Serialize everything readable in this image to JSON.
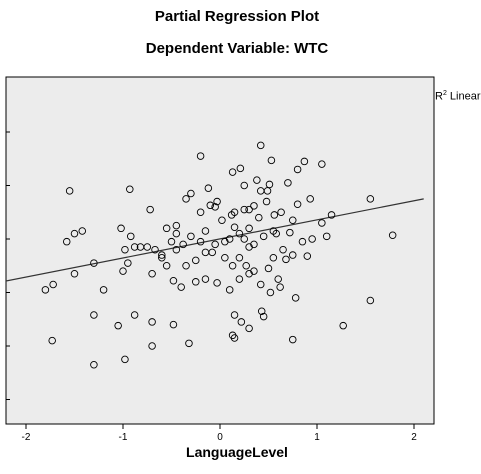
{
  "title": "Partial Regression Plot",
  "subtitle": "Dependent Variable: WTC",
  "legend_prefix": "R",
  "legend_sup": "2",
  "legend_suffix": " Linear",
  "x_axis_label": "LanguageLevel",
  "chart_data": {
    "type": "scatter",
    "title": "Partial Regression Plot",
    "subtitle": "Dependent Variable: WTC",
    "xlabel": "LanguageLevel",
    "ylabel": "",
    "xlim": [
      -2.1,
      2.1
    ],
    "ylim": [
      -3.05,
      2.1
    ],
    "x_ticks": [
      -2,
      -1,
      0,
      1,
      2
    ],
    "x_tick_labels": [
      "-2",
      "-1",
      "0",
      "1",
      "2"
    ],
    "y_ticks": [
      -3,
      -2,
      -1,
      0,
      1,
      2
    ],
    "legend": "R2 Linear",
    "legend_position": "top-right",
    "grid": false,
    "point_color": "#000000",
    "background_color": "#ececec",
    "fit_line": {
      "x0": -2.25,
      "y0": -0.8,
      "x1": 2.1,
      "y1": 0.75
    },
    "points": [
      [
        0.42,
        1.75
      ],
      [
        0.13,
        1.25
      ],
      [
        0.21,
        1.32
      ],
      [
        0.87,
        1.45
      ],
      [
        0.8,
        1.3
      ],
      [
        1.05,
        1.4
      ],
      [
        -0.2,
        1.55
      ],
      [
        0.53,
        1.47
      ],
      [
        0.25,
        1.0
      ],
      [
        -0.12,
        0.95
      ],
      [
        0.38,
        1.1
      ],
      [
        0.42,
        0.9
      ],
      [
        0.35,
        0.62
      ],
      [
        0.51,
        1.02
      ],
      [
        0.49,
        0.9
      ],
      [
        0.7,
        1.05
      ],
      [
        0.63,
        0.5
      ],
      [
        0.48,
        0.7
      ],
      [
        0.56,
        0.45
      ],
      [
        0.8,
        0.65
      ],
      [
        0.93,
        0.75
      ],
      [
        -0.93,
        0.93
      ],
      [
        -0.72,
        0.55
      ],
      [
        -0.1,
        0.63
      ],
      [
        -0.05,
        0.6
      ],
      [
        -0.2,
        0.5
      ],
      [
        -0.03,
        0.7
      ],
      [
        0.12,
        0.45
      ],
      [
        0.15,
        0.5
      ],
      [
        0.25,
        0.55
      ],
      [
        0.3,
        0.55
      ],
      [
        0.02,
        0.35
      ],
      [
        -0.3,
        0.85
      ],
      [
        -0.35,
        0.75
      ],
      [
        -0.45,
        0.25
      ],
      [
        -0.55,
        0.2
      ],
      [
        0.15,
        0.22
      ],
      [
        0.3,
        0.2
      ],
      [
        0.4,
        0.4
      ],
      [
        0.55,
        0.15
      ],
      [
        0.75,
        0.35
      ],
      [
        1.05,
        0.3
      ],
      [
        1.15,
        0.45
      ],
      [
        1.55,
        0.75
      ],
      [
        -1.02,
        0.2
      ],
      [
        -0.75,
        -0.15
      ],
      [
        -0.6,
        -0.3
      ],
      [
        -0.45,
        0.1
      ],
      [
        -0.38,
        -0.1
      ],
      [
        -0.3,
        0.05
      ],
      [
        -0.2,
        -0.05
      ],
      [
        -0.15,
        0.15
      ],
      [
        -0.05,
        -0.1
      ],
      [
        0.05,
        -0.05
      ],
      [
        0.1,
        0.0
      ],
      [
        0.2,
        0.1
      ],
      [
        0.25,
        0.0
      ],
      [
        0.3,
        -0.15
      ],
      [
        0.35,
        -0.1
      ],
      [
        0.45,
        0.05
      ],
      [
        0.58,
        0.1
      ],
      [
        0.65,
        -0.2
      ],
      [
        0.72,
        0.12
      ],
      [
        0.85,
        -0.05
      ],
      [
        0.95,
        0.0
      ],
      [
        1.1,
        0.05
      ],
      [
        -1.55,
        0.9
      ],
      [
        -1.5,
        0.1
      ],
      [
        -1.42,
        0.15
      ],
      [
        -1.58,
        -0.05
      ],
      [
        -1.3,
        -0.45
      ],
      [
        -0.98,
        -0.2
      ],
      [
        -0.95,
        -0.45
      ],
      [
        -0.88,
        -0.15
      ],
      [
        -0.82,
        -0.15
      ],
      [
        -0.92,
        0.05
      ],
      [
        -0.67,
        -0.2
      ],
      [
        -0.6,
        -0.35
      ],
      [
        -0.55,
        -0.5
      ],
      [
        -0.5,
        -0.05
      ],
      [
        -0.45,
        -0.2
      ],
      [
        -0.35,
        -0.5
      ],
      [
        -0.25,
        -0.4
      ],
      [
        -0.15,
        -0.25
      ],
      [
        -0.08,
        -0.25
      ],
      [
        0.05,
        -0.35
      ],
      [
        0.13,
        -0.5
      ],
      [
        0.2,
        -0.35
      ],
      [
        0.27,
        -0.5
      ],
      [
        0.35,
        -0.6
      ],
      [
        0.5,
        -0.55
      ],
      [
        0.55,
        -0.35
      ],
      [
        0.68,
        -0.38
      ],
      [
        0.75,
        -0.3
      ],
      [
        0.9,
        -0.32
      ],
      [
        0.6,
        -0.75
      ],
      [
        -1.5,
        -0.65
      ],
      [
        -1.72,
        -0.85
      ],
      [
        -1.8,
        -0.95
      ],
      [
        -1.2,
        -0.95
      ],
      [
        -1.0,
        -0.6
      ],
      [
        -0.7,
        -0.65
      ],
      [
        -0.48,
        -0.78
      ],
      [
        -0.4,
        -0.9
      ],
      [
        -0.25,
        -0.8
      ],
      [
        -0.15,
        -0.75
      ],
      [
        -0.03,
        -0.82
      ],
      [
        0.1,
        -0.95
      ],
      [
        0.2,
        -0.75
      ],
      [
        0.3,
        -0.65
      ],
      [
        0.42,
        -0.85
      ],
      [
        0.52,
        -1.0
      ],
      [
        0.62,
        -0.9
      ],
      [
        0.78,
        -1.1
      ],
      [
        -1.3,
        -1.42
      ],
      [
        -1.05,
        -1.62
      ],
      [
        -0.88,
        -1.42
      ],
      [
        -0.7,
        -1.55
      ],
      [
        -0.48,
        -1.6
      ],
      [
        0.15,
        -1.42
      ],
      [
        0.22,
        -1.55
      ],
      [
        0.3,
        -1.67
      ],
      [
        0.43,
        -1.35
      ],
      [
        0.45,
        -1.45
      ],
      [
        0.75,
        -1.88
      ],
      [
        1.27,
        -1.62
      ],
      [
        1.55,
        -1.15
      ],
      [
        1.78,
        0.07
      ],
      [
        -1.73,
        -1.9
      ],
      [
        -1.3,
        -2.35
      ],
      [
        -0.98,
        -2.25
      ],
      [
        -0.7,
        -2.0
      ],
      [
        -0.32,
        -1.95
      ],
      [
        0.13,
        -1.8
      ],
      [
        0.15,
        -1.85
      ]
    ]
  }
}
